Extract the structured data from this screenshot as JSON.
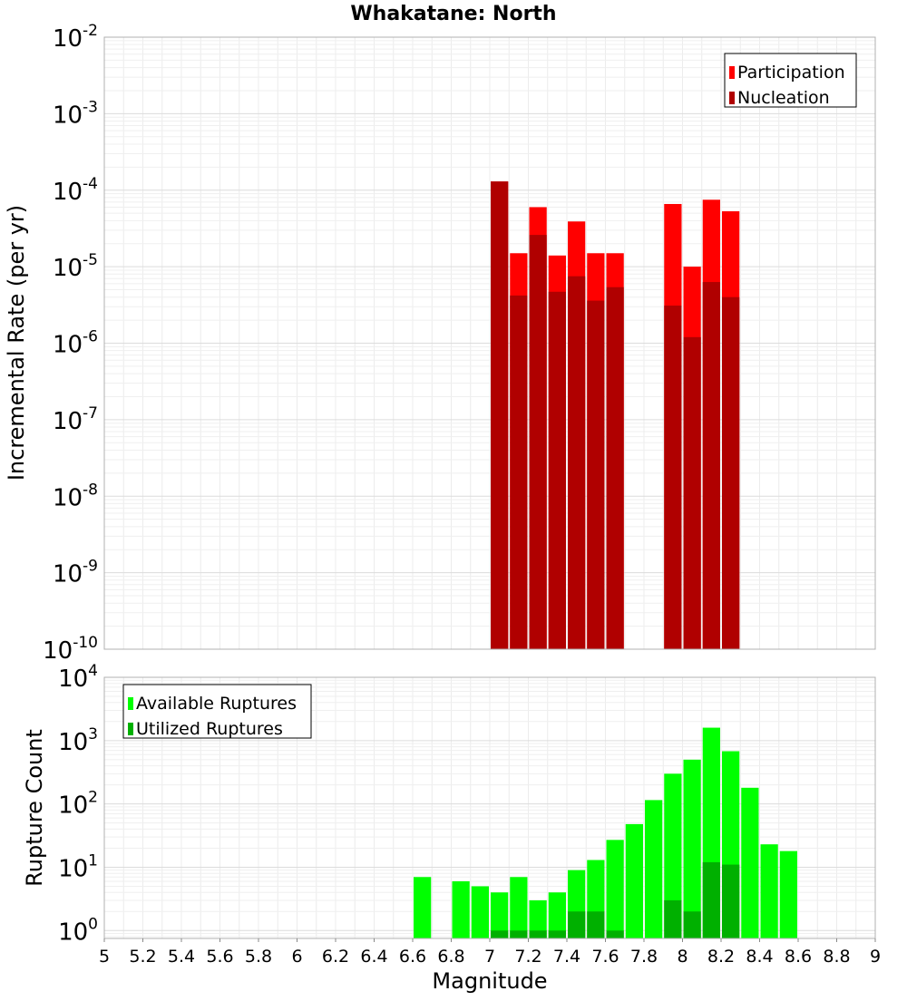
{
  "chart_data": [
    {
      "type": "bar",
      "title": "Whakatane: North",
      "xlabel": "",
      "ylabel": "Incremental Rate (per yr)",
      "xlim": [
        5,
        9
      ],
      "ylim": [
        1e-10,
        0.01
      ],
      "yscale": "log",
      "y_tick_exponents": [
        "-10",
        "-9",
        "-8",
        "-7",
        "-6",
        "-5",
        "-4",
        "-3",
        "-2"
      ],
      "grid": true,
      "legend_position": "top-right",
      "series": [
        {
          "name": "Participation",
          "color": "#ff0000",
          "x": [
            7.05,
            7.15,
            7.25,
            7.35,
            7.45,
            7.55,
            7.65,
            7.95,
            8.05,
            8.15,
            8.25
          ],
          "values": [
            0.00013,
            1.5e-05,
            6e-05,
            1.4e-05,
            3.9e-05,
            1.5e-05,
            1.5e-05,
            6.6e-05,
            1e-05,
            7.5e-05,
            5.3e-05
          ]
        },
        {
          "name": "Nucleation",
          "color": "#b00000",
          "x": [
            7.05,
            7.15,
            7.25,
            7.35,
            7.45,
            7.55,
            7.65,
            7.95,
            8.05,
            8.15,
            8.25
          ],
          "values": [
            0.00013,
            4.2e-06,
            2.6e-05,
            4.7e-06,
            7.5e-06,
            3.6e-06,
            5.4e-06,
            3.1e-06,
            1.2e-06,
            6.3e-06,
            4e-06
          ]
        }
      ]
    },
    {
      "type": "bar",
      "title": "",
      "xlabel": "Magnitude",
      "ylabel": "Rupture Count",
      "xlim": [
        5,
        9
      ],
      "ylim": [
        0.75,
        10000
      ],
      "yscale": "log",
      "y_tick_exponents": [
        "0",
        "1",
        "2",
        "3",
        "4"
      ],
      "x_ticks": [
        "5",
        "5.2",
        "5.4",
        "5.6",
        "5.8",
        "6",
        "6.2",
        "6.4",
        "6.6",
        "6.8",
        "7",
        "7.2",
        "7.4",
        "7.6",
        "7.8",
        "8",
        "8.2",
        "8.4",
        "8.6",
        "8.8",
        "9"
      ],
      "grid": true,
      "legend_position": "top-left",
      "series": [
        {
          "name": "Available Ruptures",
          "color": "#00ff00",
          "x": [
            6.65,
            6.85,
            6.95,
            7.05,
            7.15,
            7.25,
            7.35,
            7.45,
            7.55,
            7.65,
            7.75,
            7.85,
            7.95,
            8.05,
            8.15,
            8.25,
            8.35,
            8.45,
            8.55
          ],
          "values": [
            7,
            6,
            5,
            4,
            7,
            3,
            4,
            9,
            13,
            27,
            48,
            115,
            300,
            500,
            1600,
            680,
            180,
            23,
            18
          ]
        },
        {
          "name": "Utilized Ruptures",
          "color": "#00b000",
          "x": [
            7.05,
            7.15,
            7.25,
            7.35,
            7.45,
            7.55,
            7.65,
            7.95,
            8.05,
            8.15,
            8.25
          ],
          "values": [
            1,
            1,
            1,
            1,
            2,
            2,
            1,
            3,
            2,
            12,
            11
          ]
        }
      ]
    }
  ]
}
